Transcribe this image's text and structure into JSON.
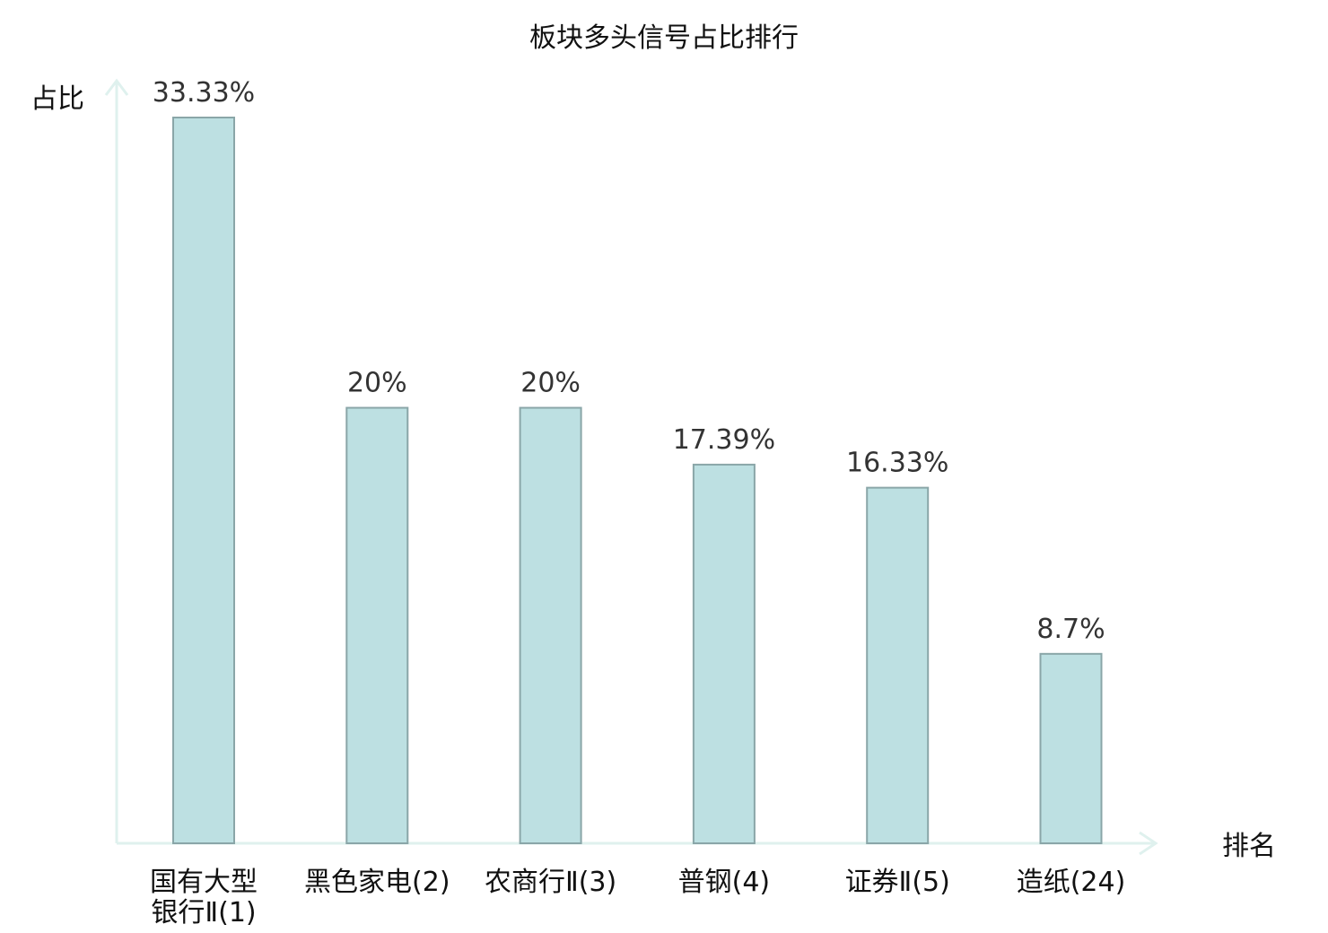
{
  "chart_data": {
    "type": "bar",
    "title": "板块多头信号占比排行",
    "xlabel": "排名",
    "ylabel": "占比",
    "ylim": [
      0,
      35
    ],
    "grid": false,
    "categories": [
      [
        "国有大型",
        "银行Ⅱ(1)"
      ],
      [
        "黑色家电(2)"
      ],
      [
        "农商行Ⅱ(3)"
      ],
      [
        "普钢(4)"
      ],
      [
        "证券Ⅱ(5)"
      ],
      [
        "造纸(24)"
      ]
    ],
    "values": [
      33.33,
      20,
      20,
      17.39,
      16.33,
      8.7
    ],
    "value_labels": [
      "33.33%",
      "20%",
      "20%",
      "17.39%",
      "16.33%",
      "8.7%"
    ],
    "highlight_index": 5
  },
  "colors": {
    "bar_fill": "#bde0e2",
    "bar_stroke": "#8aa6a8",
    "axis": "#dff1ee",
    "highlight_text": "#e3211c",
    "text": "#111111",
    "value_text": "#333333"
  }
}
